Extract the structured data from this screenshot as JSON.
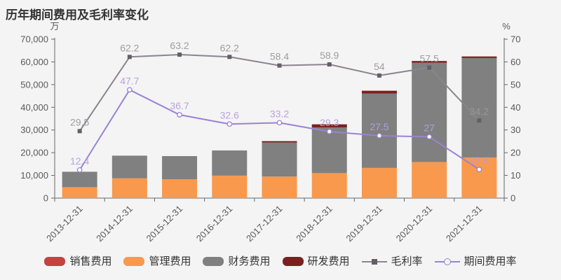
{
  "page": {
    "title": "历年期间费用及毛利率变化"
  },
  "chart_data": {
    "type": "bar+line",
    "title": "历年期间费用及毛利率变化",
    "background": "#f4f4f4",
    "grid": false,
    "legend_position": "bottom",
    "categories": [
      "2013-12-31",
      "2014-12-31",
      "2015-12-31",
      "2016-12-31",
      "2017-12-31",
      "2018-12-31",
      "2019-12-31",
      "2020-12-31",
      "2021-12-31"
    ],
    "bar_series": [
      {
        "name": "销售费用",
        "color": "#c2433f",
        "stack": "expenses",
        "values": [
          0,
          0,
          0,
          0,
          0,
          0,
          0,
          0,
          0
        ]
      },
      {
        "name": "管理费用",
        "color": "#f8994e",
        "stack": "expenses",
        "values": [
          4800,
          8700,
          8300,
          9900,
          9500,
          11000,
          13300,
          15900,
          17900
        ]
      },
      {
        "name": "财务费用",
        "color": "#808080",
        "stack": "expenses",
        "values": [
          6800,
          10000,
          10200,
          11100,
          15000,
          20100,
          32800,
          43700,
          43800
        ]
      },
      {
        "name": "研发费用",
        "color": "#7b2021",
        "stack": "expenses",
        "values": [
          0,
          0,
          0,
          0,
          600,
          1400,
          1200,
          800,
          700
        ]
      }
    ],
    "line_series": [
      {
        "name": "毛利率",
        "axis": "right",
        "color": "#8a8490",
        "marker": "square",
        "marker_color": "#655e68",
        "label_color": "#999999",
        "values": [
          29.5,
          62.2,
          63.2,
          62.2,
          58.4,
          58.9,
          54,
          57.5,
          34.2
        ]
      },
      {
        "name": "期间费用率",
        "axis": "right",
        "color": "#9b82d4",
        "marker": "circle-open",
        "marker_color": "#ffffff",
        "label_color": "#b49ddb",
        "values": [
          12.4,
          47.7,
          36.7,
          32.6,
          33.2,
          29.3,
          27.5,
          27,
          12.6
        ]
      }
    ],
    "left_axis": {
      "title": "万",
      "min": 0,
      "max": 70000,
      "tick_step": 10000,
      "tick_labels": [
        "0",
        "10,000",
        "20,000",
        "30,000",
        "40,000",
        "50,000",
        "60,000",
        "70,000"
      ]
    },
    "right_axis": {
      "title": "%",
      "min": 0,
      "max": 70,
      "tick_step": 10,
      "tick_labels": [
        "0",
        "10",
        "20",
        "30",
        "40",
        "50",
        "60",
        "70"
      ]
    },
    "x_axis": {
      "label_rotate": 45
    },
    "axis_color": "#666666",
    "axis_label_color": "#595959"
  }
}
